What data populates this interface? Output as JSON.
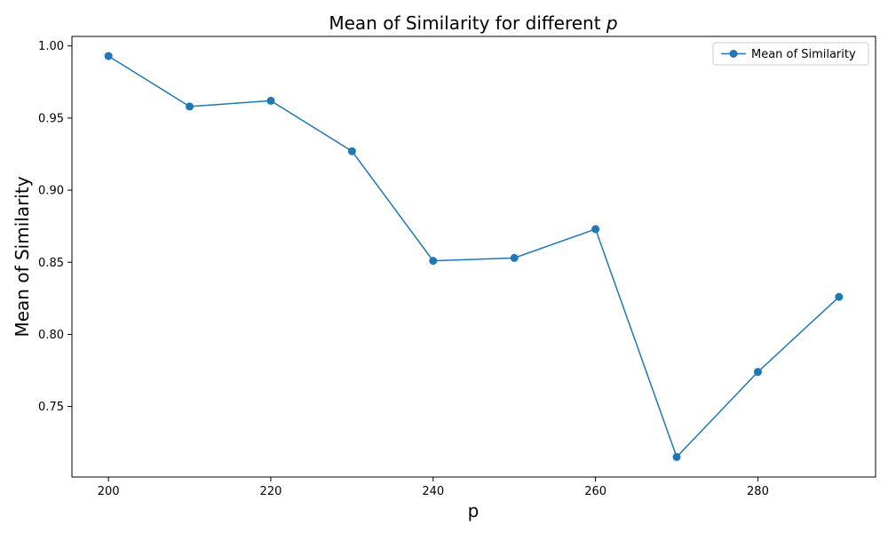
{
  "chart_data": {
    "type": "line",
    "title": "Mean of Similarity for different",
    "title_var": "p",
    "xlabel": "p",
    "ylabel": "Mean of Similarity",
    "xlim": [
      195.5,
      294.5
    ],
    "ylim": [
      0.7011,
      1.0066
    ],
    "xticks": [
      200,
      220,
      240,
      260,
      280
    ],
    "xtick_labels": [
      "200",
      "220",
      "240",
      "260",
      "280"
    ],
    "yticks": [
      0.75,
      0.8,
      0.85,
      0.9,
      0.95,
      1.0
    ],
    "ytick_labels": [
      "0.75",
      "0.80",
      "0.85",
      "0.90",
      "0.95",
      "1.00"
    ],
    "grid": false,
    "legend_position": "top-right",
    "series": [
      {
        "name": "Mean of Similarity",
        "color": "#1f77b4",
        "marker": "circle",
        "x": [
          200,
          210,
          220,
          230,
          240,
          250,
          260,
          270,
          280,
          290
        ],
        "y": [
          0.993,
          0.958,
          0.962,
          0.927,
          0.851,
          0.853,
          0.873,
          0.715,
          0.774,
          0.826
        ]
      }
    ]
  }
}
